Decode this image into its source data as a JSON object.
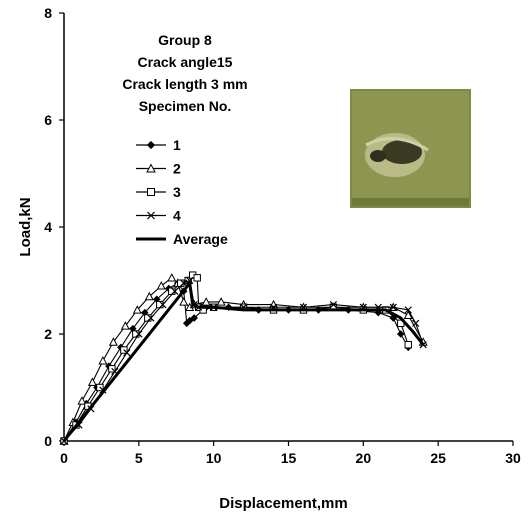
{
  "chart_data": {
    "type": "line",
    "xlabel": "Displacement,mm",
    "ylabel": "Load,kN",
    "xlim": [
      0,
      30
    ],
    "ylim": [
      0,
      8
    ],
    "xticks": [
      0,
      5,
      10,
      15,
      20,
      25,
      30
    ],
    "yticks": [
      0,
      2,
      4,
      6,
      8
    ],
    "grid": false,
    "legend_position": "top-left",
    "annotations": [
      "Group 8",
      "Crack angle15",
      "Crack length  3 mm",
      "Specimen No."
    ],
    "inset_image": "specimen photo showing crack, top-right",
    "series": [
      {
        "name": "1",
        "marker": "diamond",
        "x": [
          0,
          0.8,
          1.5,
          2.2,
          3.0,
          3.8,
          4.6,
          5.4,
          6.2,
          7.0,
          7.6,
          8.0,
          8.2,
          8.4,
          8.7,
          9.5,
          11,
          13,
          15,
          17,
          19,
          21,
          22,
          22.5,
          23
        ],
        "y": [
          0,
          0.35,
          0.7,
          1.0,
          1.4,
          1.75,
          2.1,
          2.4,
          2.65,
          2.85,
          2.95,
          2.8,
          2.2,
          2.25,
          2.3,
          2.5,
          2.5,
          2.45,
          2.45,
          2.45,
          2.45,
          2.4,
          2.3,
          2.0,
          1.75
        ]
      },
      {
        "name": "2",
        "marker": "triangle",
        "x": [
          0,
          0.6,
          1.2,
          1.9,
          2.6,
          3.3,
          4.1,
          4.9,
          5.7,
          6.5,
          7.2,
          7.6,
          8.0,
          8.4,
          8.7,
          9.5,
          10.5,
          12,
          14,
          16,
          18,
          20,
          22,
          23,
          24
        ],
        "y": [
          0,
          0.35,
          0.75,
          1.1,
          1.5,
          1.85,
          2.15,
          2.45,
          2.7,
          2.9,
          3.05,
          2.95,
          2.6,
          2.5,
          2.55,
          2.6,
          2.6,
          2.55,
          2.55,
          2.5,
          2.5,
          2.5,
          2.5,
          2.35,
          1.85
        ]
      },
      {
        "name": "3",
        "marker": "square",
        "x": [
          0,
          0.8,
          1.6,
          2.4,
          3.2,
          4.0,
          4.8,
          5.6,
          6.4,
          7.2,
          7.8,
          8.3,
          8.6,
          8.9,
          9.0,
          9.3,
          10,
          12,
          14,
          16,
          18,
          20,
          21.5,
          22.5,
          23
        ],
        "y": [
          0,
          0.3,
          0.65,
          1.0,
          1.35,
          1.7,
          2.0,
          2.3,
          2.55,
          2.8,
          2.95,
          3.0,
          3.1,
          3.05,
          2.5,
          2.45,
          2.5,
          2.5,
          2.45,
          2.45,
          2.5,
          2.45,
          2.45,
          2.2,
          1.8
        ]
      },
      {
        "name": "4",
        "marker": "cross",
        "x": [
          0,
          1.0,
          1.8,
          2.6,
          3.4,
          4.2,
          5.0,
          5.8,
          6.6,
          7.4,
          8.0,
          8.4,
          8.7,
          9.0,
          10,
          12,
          14,
          16,
          18,
          20,
          21,
          22,
          23,
          23.5,
          24
        ],
        "y": [
          0,
          0.3,
          0.6,
          0.95,
          1.3,
          1.65,
          2.0,
          2.3,
          2.55,
          2.8,
          2.95,
          3.0,
          2.55,
          2.5,
          2.5,
          2.5,
          2.5,
          2.5,
          2.55,
          2.5,
          2.5,
          2.5,
          2.45,
          2.2,
          1.8
        ]
      },
      {
        "name": "Average",
        "marker": "none",
        "x": [
          0,
          8.4,
          8.6,
          9.0,
          10,
          12,
          14,
          16,
          18,
          20,
          21.5,
          22.5,
          23.3,
          24
        ],
        "y": [
          0,
          2.95,
          2.55,
          2.5,
          2.5,
          2.45,
          2.45,
          2.45,
          2.45,
          2.45,
          2.45,
          2.3,
          2.05,
          1.8
        ]
      }
    ]
  }
}
